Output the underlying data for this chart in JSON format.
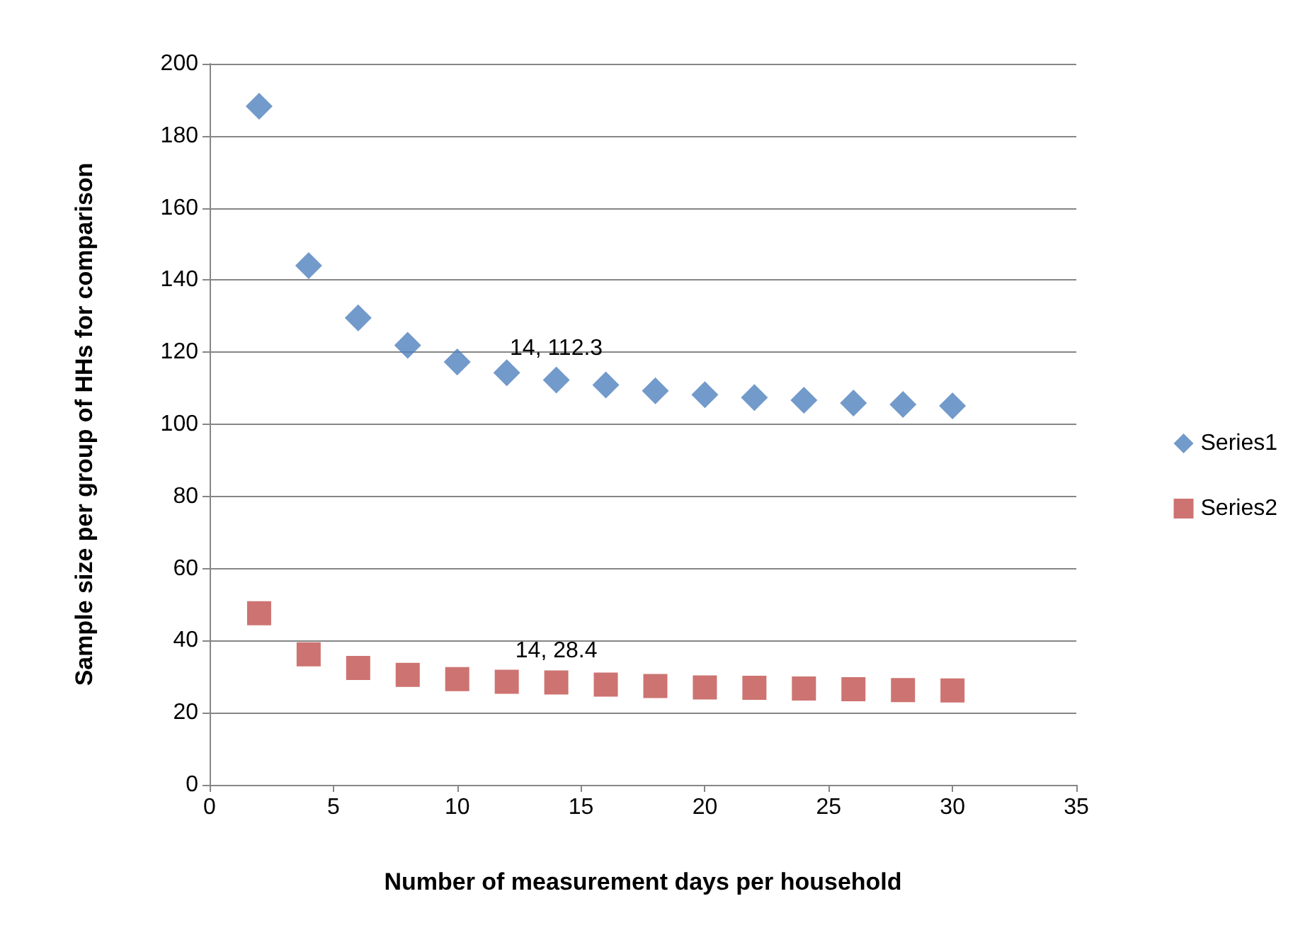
{
  "chart_data": {
    "type": "scatter",
    "xlabel": "Number of measurement days per household",
    "ylabel": "Sample size per group of HHs for comparison",
    "x": [
      2,
      4,
      6,
      8,
      10,
      12,
      14,
      16,
      18,
      20,
      22,
      24,
      26,
      28,
      30
    ],
    "series": [
      {
        "name": "Series1",
        "color": "#4f81bd",
        "marker": "diamond",
        "values": [
          188.2,
          144,
          129.5,
          121.9,
          117.3,
          114.3,
          112.3,
          110.9,
          109.3,
          108.2,
          107.4,
          106.7,
          105.9,
          105.5,
          105.1
        ]
      },
      {
        "name": "Series2",
        "color": "#c0504d",
        "marker": "square",
        "values": [
          47.6,
          36.2,
          32.4,
          30.5,
          29.3,
          28.6,
          28.4,
          27.8,
          27.4,
          27,
          26.9,
          26.7,
          26.5,
          26.3,
          26.2
        ]
      }
    ],
    "annotations": [
      {
        "text": "14, 112.3",
        "x": 14,
        "y": 112.3
      },
      {
        "text": "14, 28.4",
        "x": 14,
        "y": 28.4
      }
    ],
    "xlim": [
      0,
      35
    ],
    "xticks": [
      0,
      5,
      10,
      15,
      20,
      25,
      30,
      35
    ],
    "ylim": [
      0,
      200
    ],
    "yticks": [
      0,
      20,
      40,
      60,
      80,
      100,
      120,
      140,
      160,
      180,
      200
    ],
    "grid": "y",
    "legend": "right"
  }
}
